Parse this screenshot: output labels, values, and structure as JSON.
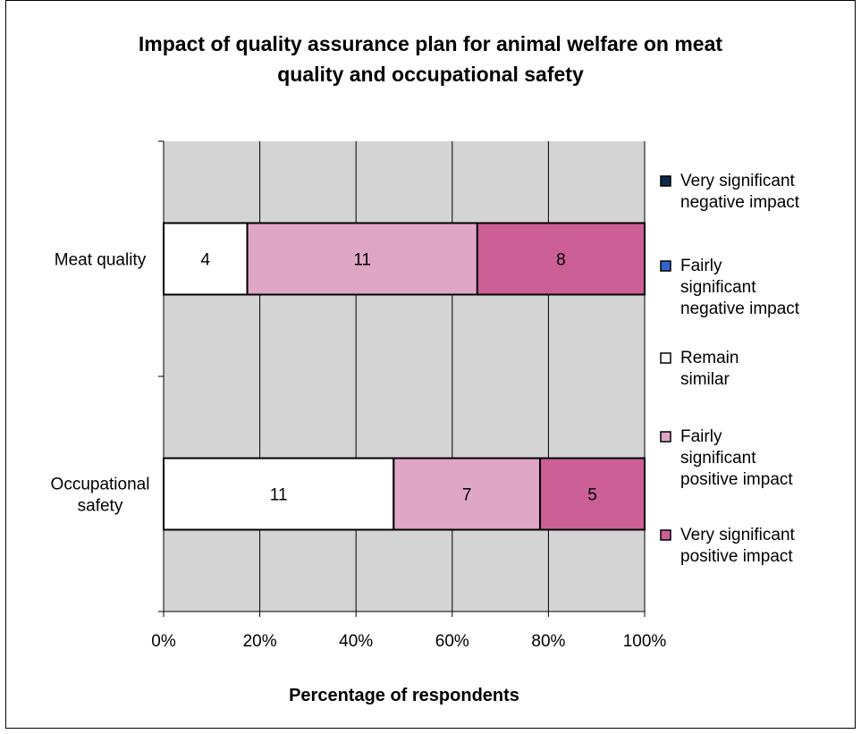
{
  "chart_data": {
    "type": "bar",
    "orientation": "horizontal",
    "stacking": "percent",
    "title": "Impact of quality assurance plan for animal welfare on meat quality and occupational safety",
    "title_lines": [
      "Impact of quality assurance plan for animal welfare on meat",
      "quality and occupational safety"
    ],
    "xlabel": "Percentage of respondents",
    "ylabel": "",
    "xlim": [
      0,
      100
    ],
    "x_ticks": [
      "0%",
      "20%",
      "40%",
      "60%",
      "80%",
      "100%"
    ],
    "categories": [
      "Meat quality",
      "Occupational safety"
    ],
    "category_label_lines": [
      [
        "Meat quality"
      ],
      [
        "Occupational",
        "safety"
      ]
    ],
    "series": [
      {
        "name": "Very significant negative impact",
        "legend_lines": [
          "Very significant",
          "negative impact"
        ],
        "color": "#0b2a4a",
        "values": [
          0,
          0
        ]
      },
      {
        "name": "Fairly significant negative impact",
        "legend_lines": [
          "Fairly",
          "significant",
          "negative impact"
        ],
        "color": "#3366cc",
        "values": [
          0,
          0
        ]
      },
      {
        "name": "Remain similar",
        "legend_lines": [
          "Remain",
          "similar"
        ],
        "color": "#ffffff",
        "values": [
          4,
          11
        ]
      },
      {
        "name": "Fairly significant positive impact",
        "legend_lines": [
          "Fairly",
          "significant",
          "positive impact"
        ],
        "color": "#e0a6c6",
        "values": [
          11,
          7
        ]
      },
      {
        "name": "Very significant positive impact",
        "legend_lines": [
          "Very significant",
          "positive impact"
        ],
        "color": "#cc5f96",
        "values": [
          8,
          5
        ]
      }
    ],
    "grid": true,
    "plot_background": "#d4d4d4",
    "legend_position": "right"
  }
}
